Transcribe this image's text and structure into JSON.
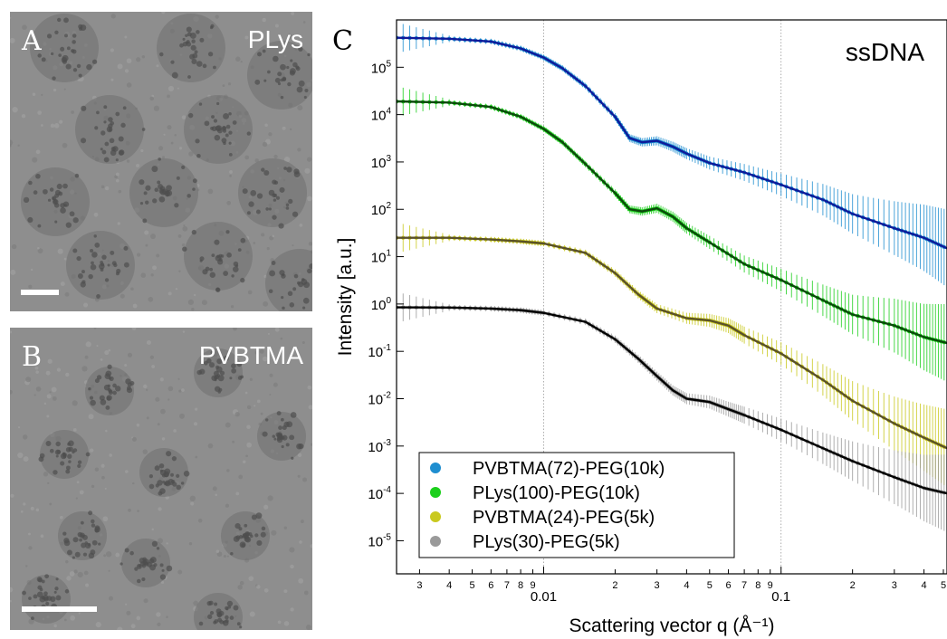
{
  "panel_a": {
    "letter": "A",
    "label": "PLys"
  },
  "panel_b": {
    "letter": "B",
    "label": "PVBTMA"
  },
  "panel_c": {
    "letter": "C"
  },
  "colors": {
    "blue": "#1f8ed0",
    "green": "#1ccf1c",
    "yellow": "#c9c91f",
    "gray": "#9a9a9a",
    "fit_blue": "#0d1a9a",
    "fit_green": "#0b4a0b",
    "fit_yellow": "#5a5128",
    "fit_gray": "#000000"
  },
  "chart_data": {
    "type": "scatter",
    "annotation": "ssDNA",
    "xlabel": "Scattering vector q (Å⁻¹)",
    "ylabel": "Intensity [a.u.]",
    "xscale": "log",
    "yscale": "log",
    "xlim": [
      0.0024,
      0.5
    ],
    "ylim": [
      2e-06,
      1000000
    ],
    "grid": "vertical dotted lines at decades",
    "legend_position": "bottom-left",
    "x_major_ticks": [
      {
        "value": 0.01,
        "label": "0.01"
      },
      {
        "value": 0.1,
        "label": "0.1"
      }
    ],
    "x_minor_labels": [
      {
        "value": 0.003,
        "label": "3"
      },
      {
        "value": 0.004,
        "label": "4"
      },
      {
        "value": 0.005,
        "label": "5"
      },
      {
        "value": 0.006,
        "label": "6"
      },
      {
        "value": 0.007,
        "label": "7"
      },
      {
        "value": 0.008,
        "label": "8"
      },
      {
        "value": 0.009,
        "label": "9"
      },
      {
        "value": 0.02,
        "label": "2"
      },
      {
        "value": 0.03,
        "label": "3"
      },
      {
        "value": 0.04,
        "label": "4"
      },
      {
        "value": 0.05,
        "label": "5"
      },
      {
        "value": 0.06,
        "label": "6"
      },
      {
        "value": 0.07,
        "label": "7"
      },
      {
        "value": 0.08,
        "label": "8"
      },
      {
        "value": 0.09,
        "label": "9"
      },
      {
        "value": 0.2,
        "label": "2"
      },
      {
        "value": 0.3,
        "label": "3"
      },
      {
        "value": 0.4,
        "label": "4"
      },
      {
        "value": 0.5,
        "label": "5"
      }
    ],
    "y_ticks": [
      {
        "exp": 5,
        "base": "10",
        "sup": "5"
      },
      {
        "exp": 4,
        "base": "10",
        "sup": "4"
      },
      {
        "exp": 3,
        "base": "10",
        "sup": "3"
      },
      {
        "exp": 2,
        "base": "10",
        "sup": "2"
      },
      {
        "exp": 1,
        "base": "10",
        "sup": "1"
      },
      {
        "exp": 0,
        "base": "10",
        "sup": "0"
      },
      {
        "exp": -1,
        "base": "10",
        "sup": "-1"
      },
      {
        "exp": -2,
        "base": "10",
        "sup": "-2"
      },
      {
        "exp": -3,
        "base": "10",
        "sup": "-3"
      },
      {
        "exp": -4,
        "base": "10",
        "sup": "-4"
      },
      {
        "exp": -5,
        "base": "10",
        "sup": "-5"
      }
    ],
    "series": [
      {
        "name": "PVBTMA(72)-PEG(10k)",
        "color_key": "blue",
        "fit_key": "fit_blue",
        "points": [
          [
            0.0024,
            420000
          ],
          [
            0.004,
            400000
          ],
          [
            0.006,
            350000
          ],
          [
            0.008,
            250000
          ],
          [
            0.01,
            160000
          ],
          [
            0.012,
            95000
          ],
          [
            0.015,
            40000
          ],
          [
            0.02,
            9000
          ],
          [
            0.023,
            3200
          ],
          [
            0.026,
            2600
          ],
          [
            0.03,
            2800
          ],
          [
            0.035,
            2100
          ],
          [
            0.04,
            1500
          ],
          [
            0.05,
            950
          ],
          [
            0.07,
            600
          ],
          [
            0.1,
            330
          ],
          [
            0.15,
            160
          ],
          [
            0.2,
            80
          ],
          [
            0.3,
            40
          ],
          [
            0.4,
            25
          ],
          [
            0.5,
            15
          ]
        ]
      },
      {
        "name": "PLys(100)-PEG(10k)",
        "color_key": "green",
        "fit_key": "fit_green",
        "points": [
          [
            0.0024,
            19000
          ],
          [
            0.004,
            18000
          ],
          [
            0.006,
            14500
          ],
          [
            0.008,
            9000
          ],
          [
            0.01,
            5000
          ],
          [
            0.012,
            2600
          ],
          [
            0.015,
            900
          ],
          [
            0.02,
            220
          ],
          [
            0.023,
            100
          ],
          [
            0.026,
            90
          ],
          [
            0.03,
            105
          ],
          [
            0.035,
            70
          ],
          [
            0.04,
            40
          ],
          [
            0.05,
            20
          ],
          [
            0.07,
            7
          ],
          [
            0.1,
            3.2
          ],
          [
            0.15,
            1.2
          ],
          [
            0.2,
            0.6
          ],
          [
            0.3,
            0.35
          ],
          [
            0.4,
            0.2
          ],
          [
            0.5,
            0.15
          ]
        ]
      },
      {
        "name": "PVBTMA(24)-PEG(5k)",
        "color_key": "yellow",
        "fit_key": "fit_yellow",
        "points": [
          [
            0.0024,
            25
          ],
          [
            0.004,
            25
          ],
          [
            0.006,
            23
          ],
          [
            0.008,
            21
          ],
          [
            0.01,
            19
          ],
          [
            0.015,
            12
          ],
          [
            0.02,
            4.5
          ],
          [
            0.025,
            1.6
          ],
          [
            0.03,
            0.8
          ],
          [
            0.04,
            0.5
          ],
          [
            0.05,
            0.45
          ],
          [
            0.06,
            0.35
          ],
          [
            0.07,
            0.22
          ],
          [
            0.1,
            0.09
          ],
          [
            0.15,
            0.025
          ],
          [
            0.2,
            0.009
          ],
          [
            0.3,
            0.003
          ],
          [
            0.4,
            0.0015
          ],
          [
            0.5,
            0.0009
          ]
        ]
      },
      {
        "name": "PLys(30)-PEG(5k)",
        "color_key": "gray",
        "fit_key": "fit_gray",
        "points": [
          [
            0.0024,
            0.85
          ],
          [
            0.004,
            0.84
          ],
          [
            0.006,
            0.8
          ],
          [
            0.008,
            0.74
          ],
          [
            0.01,
            0.65
          ],
          [
            0.015,
            0.42
          ],
          [
            0.02,
            0.18
          ],
          [
            0.025,
            0.07
          ],
          [
            0.03,
            0.03
          ],
          [
            0.035,
            0.015
          ],
          [
            0.04,
            0.01
          ],
          [
            0.05,
            0.0085
          ],
          [
            0.06,
            0.006
          ],
          [
            0.07,
            0.0045
          ],
          [
            0.1,
            0.0022
          ],
          [
            0.15,
            0.0009
          ],
          [
            0.2,
            0.00048
          ],
          [
            0.3,
            0.00022
          ],
          [
            0.4,
            0.00013
          ],
          [
            0.5,
            0.0001
          ]
        ]
      }
    ]
  }
}
